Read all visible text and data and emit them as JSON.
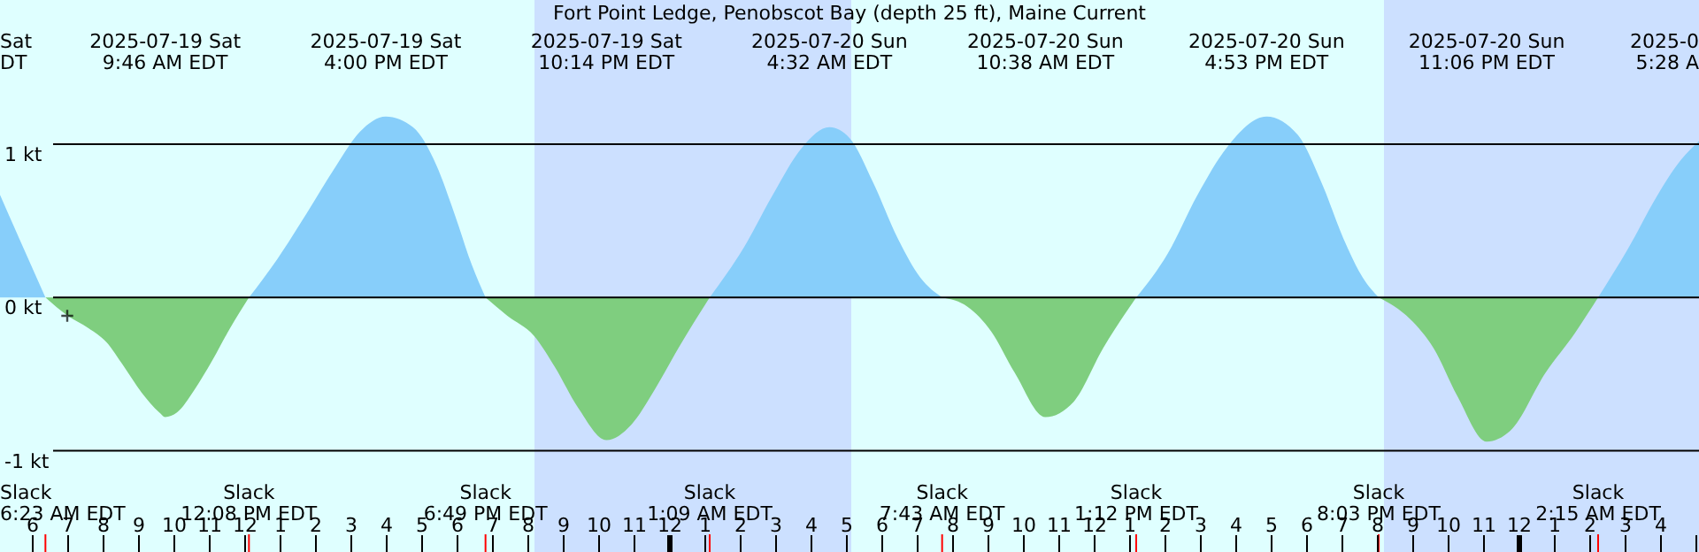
{
  "chart_data": {
    "type": "area",
    "title": "Fort Point Ledge, Penobscot Bay (depth 25 ft), Maine Current",
    "xlim": [
      "2025-07-19T05:06",
      "2025-07-21T05:06"
    ],
    "xticks": [
      {
        "value": "2025-07-19T06:00",
        "label": "6"
      },
      {
        "value": "2025-07-19T07:00",
        "label": "7"
      },
      {
        "value": "2025-07-19T08:00",
        "label": "8"
      },
      {
        "value": "2025-07-19T09:00",
        "label": "9"
      },
      {
        "value": "2025-07-19T10:00",
        "label": "10"
      },
      {
        "value": "2025-07-19T11:00",
        "label": "11"
      },
      {
        "value": "2025-07-19T12:00",
        "label": "12"
      },
      {
        "value": "2025-07-19T13:00",
        "label": "1"
      },
      {
        "value": "2025-07-19T14:00",
        "label": "2"
      },
      {
        "value": "2025-07-19T15:00",
        "label": "3"
      },
      {
        "value": "2025-07-19T16:00",
        "label": "4"
      },
      {
        "value": "2025-07-19T17:00",
        "label": "5"
      },
      {
        "value": "2025-07-19T18:00",
        "label": "6"
      },
      {
        "value": "2025-07-19T19:00",
        "label": "7"
      },
      {
        "value": "2025-07-19T20:00",
        "label": "8"
      },
      {
        "value": "2025-07-19T21:00",
        "label": "9"
      },
      {
        "value": "2025-07-19T22:00",
        "label": "10"
      },
      {
        "value": "2025-07-19T23:00",
        "label": "11"
      },
      {
        "value": "2025-07-20T00:00",
        "label": "12"
      },
      {
        "value": "2025-07-20T01:00",
        "label": "1"
      },
      {
        "value": "2025-07-20T02:00",
        "label": "2"
      },
      {
        "value": "2025-07-20T03:00",
        "label": "3"
      },
      {
        "value": "2025-07-20T04:00",
        "label": "4"
      },
      {
        "value": "2025-07-20T05:00",
        "label": "5"
      },
      {
        "value": "2025-07-20T06:00",
        "label": "6"
      },
      {
        "value": "2025-07-20T07:00",
        "label": "7"
      },
      {
        "value": "2025-07-20T08:00",
        "label": "8"
      },
      {
        "value": "2025-07-20T09:00",
        "label": "9"
      },
      {
        "value": "2025-07-20T10:00",
        "label": "10"
      },
      {
        "value": "2025-07-20T11:00",
        "label": "11"
      },
      {
        "value": "2025-07-20T12:00",
        "label": "12"
      },
      {
        "value": "2025-07-20T13:00",
        "label": "1"
      },
      {
        "value": "2025-07-20T14:00",
        "label": "2"
      },
      {
        "value": "2025-07-20T15:00",
        "label": "3"
      },
      {
        "value": "2025-07-20T16:00",
        "label": "4"
      },
      {
        "value": "2025-07-20T17:00",
        "label": "5"
      },
      {
        "value": "2025-07-20T18:00",
        "label": "6"
      },
      {
        "value": "2025-07-20T19:00",
        "label": "7"
      },
      {
        "value": "2025-07-20T20:00",
        "label": "8"
      },
      {
        "value": "2025-07-20T21:00",
        "label": "9"
      },
      {
        "value": "2025-07-20T22:00",
        "label": "10"
      },
      {
        "value": "2025-07-20T23:00",
        "label": "11"
      },
      {
        "value": "2025-07-21T00:00",
        "label": "12"
      },
      {
        "value": "2025-07-21T01:00",
        "label": "1"
      },
      {
        "value": "2025-07-21T02:00",
        "label": "2"
      },
      {
        "value": "2025-07-21T03:00",
        "label": "3"
      },
      {
        "value": "2025-07-21T04:00",
        "label": "4"
      },
      {
        "value": "2025-07-21T05:00",
        "label": null
      }
    ],
    "ylim": [
      -1.66,
      1.94
    ],
    "yticks": [
      {
        "value": -1,
        "label": "-1 kt"
      },
      {
        "value": 0,
        "label": "0 kt"
      },
      {
        "value": 1,
        "label": "1 kt"
      }
    ],
    "grid": "y",
    "bands": [
      {
        "axis": "x",
        "from": "2025-07-19T20:12",
        "to": "2025-07-20T05:09",
        "color": "#cce0ff"
      },
      {
        "axis": "x",
        "from": "2025-07-20T20:12",
        "to": "2025-07-21T05:06",
        "color": "#cce0ff"
      }
    ],
    "series": [
      {
        "color": "#87cefa",
        "x": [
          "2025-07-19T05:06",
          "2025-07-19T05:46",
          "2025-07-19T06:23",
          "2025-07-19T09:46",
          "2025-07-19T12:08",
          "2025-07-19T12:56",
          "2025-07-19T13:46",
          "2025-07-19T14:36",
          "2025-07-19T15:16",
          "2025-07-19T16:00",
          "2025-07-19T16:46",
          "2025-07-19T17:26",
          "2025-07-19T17:56",
          "2025-07-19T18:26",
          "2025-07-19T18:49",
          "2025-07-19T22:14",
          "2025-07-20T01:09",
          "2025-07-20T02:06",
          "2025-07-20T02:56",
          "2025-07-20T03:46",
          "2025-07-20T04:32",
          "2025-07-20T05:06",
          "2025-07-20T05:46",
          "2025-07-20T06:26",
          "2025-07-20T07:06",
          "2025-07-20T07:43",
          "2025-07-20T10:38",
          "2025-07-20T13:12",
          "2025-07-20T14:06",
          "2025-07-20T14:56",
          "2025-07-20T15:46",
          "2025-07-20T16:53",
          "2025-07-20T17:46",
          "2025-07-20T18:26",
          "2025-07-20T19:06",
          "2025-07-20T19:36",
          "2025-07-20T20:03",
          "2025-07-20T23:06",
          "2025-07-21T02:15",
          "2025-07-21T03:06",
          "2025-07-21T03:56",
          "2025-07-21T04:36",
          "2025-07-21T05:06"
        ],
        "values": [
          0.67,
          0.32,
          0,
          null,
          0,
          0.25,
          0.55,
          0.86,
          1.08,
          1.18,
          1.11,
          0.86,
          0.55,
          0.21,
          0,
          null,
          0,
          0.32,
          0.67,
          0.98,
          1.11,
          1.04,
          0.75,
          0.4,
          0.13,
          0,
          null,
          0,
          0.29,
          0.67,
          0.98,
          1.18,
          1.06,
          0.75,
          0.36,
          0.13,
          0,
          null,
          0,
          0.32,
          0.67,
          0.9,
          1.02
        ]
      },
      {
        "color": "#7fce7f",
        "x": [
          "2025-07-19T06:23",
          "2025-07-19T07:01",
          "2025-07-19T07:36",
          "2025-07-19T08:06",
          "2025-07-19T08:36",
          "2025-07-19T09:06",
          "2025-07-19T09:36",
          "2025-07-19T09:46",
          "2025-07-19T10:06",
          "2025-07-19T10:36",
          "2025-07-19T11:06",
          "2025-07-19T11:36",
          "2025-07-19T12:08",
          "2025-07-19T16:00",
          "2025-07-19T18:49",
          "2025-07-19T19:26",
          "2025-07-19T20:11",
          "2025-07-19T20:46",
          "2025-07-19T21:26",
          "2025-07-19T22:14",
          "2025-07-19T22:56",
          "2025-07-19T23:36",
          "2025-07-20T00:16",
          "2025-07-20T01:09",
          "2025-07-20T04:32",
          "2025-07-20T07:43",
          "2025-07-20T08:26",
          "2025-07-20T09:06",
          "2025-07-20T09:46",
          "2025-07-20T10:38",
          "2025-07-20T11:26",
          "2025-07-20T12:16",
          "2025-07-20T13:12",
          "2025-07-20T16:53",
          "2025-07-20T20:03",
          "2025-07-20T20:56",
          "2025-07-20T21:36",
          "2025-07-20T22:16",
          "2025-07-20T23:06",
          "2025-07-20T23:46",
          "2025-07-21T00:46",
          "2025-07-21T01:36",
          "2025-07-21T02:15"
        ],
        "values": [
          0,
          -0.12,
          -0.2,
          -0.29,
          -0.45,
          -0.62,
          -0.75,
          -0.78,
          -0.75,
          -0.6,
          -0.41,
          -0.2,
          0,
          null,
          0,
          -0.12,
          -0.25,
          -0.45,
          -0.72,
          -0.93,
          -0.83,
          -0.6,
          -0.33,
          0,
          null,
          0,
          -0.06,
          -0.22,
          -0.49,
          -0.78,
          -0.68,
          -0.33,
          0,
          null,
          0,
          -0.14,
          -0.33,
          -0.64,
          -0.94,
          -0.87,
          -0.49,
          -0.23,
          0
        ]
      },
      {
        "type": "scatter",
        "marker": "cross",
        "color": "#000000",
        "x": [
          "2025-07-19T07:00"
        ],
        "values": [
          -0.12
        ]
      }
    ],
    "annotations": [
      "Sat\nDT",
      "Slack\n6:23 AM EDT",
      "2025-07-19 Sat\n9:46 AM EDT",
      "Slack\n12:08 PM EDT",
      "2025-07-19 Sat\n4:00 PM EDT",
      "Slack\n6:49 PM EDT",
      "2025-07-19 Sat\n10:14 PM EDT",
      "Slack\n1:09 AM EDT",
      "2025-07-20 Sun\n4:32 AM EDT",
      "Slack\n7:43 AM EDT",
      "2025-07-20 Sun\n10:38 AM EDT",
      "Slack\n1:12 PM EDT",
      "2025-07-20 Sun\n4:53 PM EDT",
      "Slack\n8:03 PM EDT",
      "2025-07-20 Sun\n11:06 PM EDT",
      "Slack\n2:15 AM EDT",
      "2025-0\n5:28 A"
    ]
  }
}
